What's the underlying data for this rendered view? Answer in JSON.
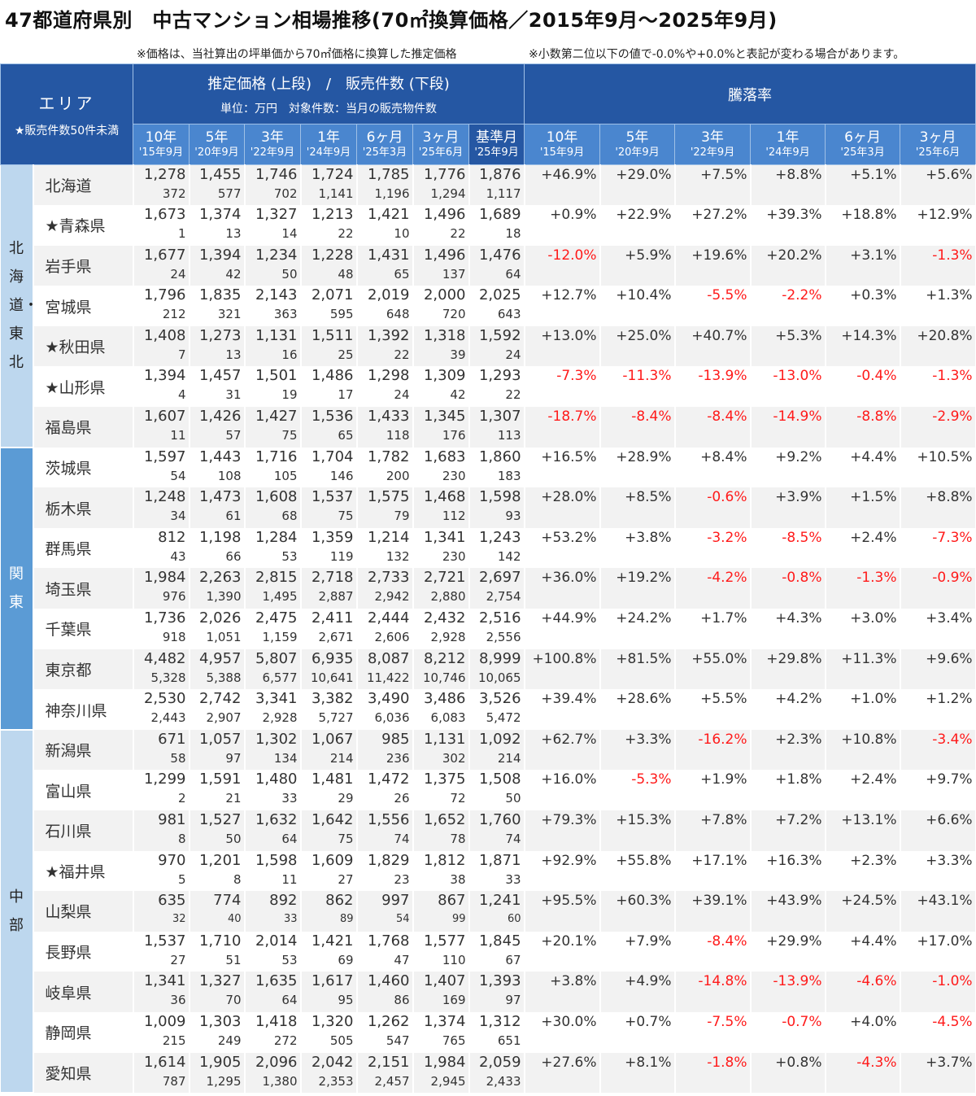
{
  "title": "47都道府県別　中古マンション相場推移(70㎡換算価格／2015年9月～2025年9月)",
  "notes": {
    "left": "※価格は、当社算出の坪単価から70㎡価格に換算した推定価格",
    "right": "※小数第二位以下の値で-0.0%や+0.0%と表記が変わる場合があります。"
  },
  "header": {
    "area": "エリア",
    "area_note": "★販売件数50件未満",
    "price_group": "推定価格 (上段)　/　販売件数 (下段)",
    "price_sub": "単位：万円　対象件数：当月の販売物件数",
    "rate_group": "騰落率",
    "price_cols": [
      {
        "label": "10年",
        "date": "'15年9月"
      },
      {
        "label": "5年",
        "date": "'20年9月"
      },
      {
        "label": "3年",
        "date": "'22年9月"
      },
      {
        "label": "1年",
        "date": "'24年9月"
      },
      {
        "label": "6ヶ月",
        "date": "'25年3月"
      },
      {
        "label": "3ヶ月",
        "date": "'25年6月"
      },
      {
        "label": "基準月",
        "date": "'25年9月"
      }
    ],
    "rate_cols": [
      {
        "label": "10年",
        "date": "'15年9月"
      },
      {
        "label": "5年",
        "date": "'20年9月"
      },
      {
        "label": "3年",
        "date": "'22年9月"
      },
      {
        "label": "1年",
        "date": "'24年9月"
      },
      {
        "label": "6ヶ月",
        "date": "'25年3月"
      },
      {
        "label": "3ヶ月",
        "date": "'25年6月"
      }
    ]
  },
  "colors": {
    "header_dark": "#2557a3",
    "header_light": "#4a86cf",
    "region_light": "#bdd7ee",
    "region_kanto": "#5b9bd5",
    "negative": "#ff1a1a",
    "row_alt": "#f2f2f2"
  },
  "regions": [
    {
      "name": "北海道・東北",
      "color": "#bdd7ee",
      "text_color": "#222",
      "prefs": [
        {
          "name": "北海道",
          "prices": [
            "1,278",
            "1,455",
            "1,746",
            "1,724",
            "1,785",
            "1,776",
            "1,876"
          ],
          "counts": [
            "372",
            "577",
            "702",
            "1,141",
            "1,196",
            "1,294",
            "1,117"
          ],
          "rates": [
            "+46.9%",
            "+29.0%",
            "+7.5%",
            "+8.8%",
            "+5.1%",
            "+5.6%"
          ]
        },
        {
          "name": "★青森県",
          "prices": [
            "1,673",
            "1,374",
            "1,327",
            "1,213",
            "1,421",
            "1,496",
            "1,689"
          ],
          "counts": [
            "1",
            "13",
            "14",
            "22",
            "10",
            "22",
            "18"
          ],
          "rates": [
            "+0.9%",
            "+22.9%",
            "+27.2%",
            "+39.3%",
            "+18.8%",
            "+12.9%"
          ]
        },
        {
          "name": "岩手県",
          "prices": [
            "1,677",
            "1,394",
            "1,234",
            "1,228",
            "1,431",
            "1,496",
            "1,476"
          ],
          "counts": [
            "24",
            "42",
            "50",
            "48",
            "65",
            "137",
            "64"
          ],
          "rates": [
            "-12.0%",
            "+5.9%",
            "+19.6%",
            "+20.2%",
            "+3.1%",
            "-1.3%"
          ]
        },
        {
          "name": "宮城県",
          "prices": [
            "1,796",
            "1,835",
            "2,143",
            "2,071",
            "2,019",
            "2,000",
            "2,025"
          ],
          "counts": [
            "212",
            "321",
            "363",
            "595",
            "648",
            "720",
            "643"
          ],
          "rates": [
            "+12.7%",
            "+10.4%",
            "-5.5%",
            "-2.2%",
            "+0.3%",
            "+1.3%"
          ]
        },
        {
          "name": "★秋田県",
          "prices": [
            "1,408",
            "1,273",
            "1,131",
            "1,511",
            "1,392",
            "1,318",
            "1,592"
          ],
          "counts": [
            "7",
            "13",
            "16",
            "25",
            "22",
            "39",
            "24"
          ],
          "rates": [
            "+13.0%",
            "+25.0%",
            "+40.7%",
            "+5.3%",
            "+14.3%",
            "+20.8%"
          ]
        },
        {
          "name": "★山形県",
          "prices": [
            "1,394",
            "1,457",
            "1,501",
            "1,486",
            "1,298",
            "1,309",
            "1,293"
          ],
          "counts": [
            "4",
            "31",
            "19",
            "17",
            "24",
            "42",
            "22"
          ],
          "rates": [
            "-7.3%",
            "-11.3%",
            "-13.9%",
            "-13.0%",
            "-0.4%",
            "-1.3%"
          ]
        },
        {
          "name": "福島県",
          "prices": [
            "1,607",
            "1,426",
            "1,427",
            "1,536",
            "1,433",
            "1,345",
            "1,307"
          ],
          "counts": [
            "11",
            "57",
            "75",
            "65",
            "118",
            "176",
            "113"
          ],
          "rates": [
            "-18.7%",
            "-8.4%",
            "-8.4%",
            "-14.9%",
            "-8.8%",
            "-2.9%"
          ]
        }
      ]
    },
    {
      "name": "関東",
      "color": "#5b9bd5",
      "text_color": "#ffffff",
      "prefs": [
        {
          "name": "茨城県",
          "prices": [
            "1,597",
            "1,443",
            "1,716",
            "1,704",
            "1,782",
            "1,683",
            "1,860"
          ],
          "counts": [
            "54",
            "108",
            "105",
            "146",
            "200",
            "230",
            "183"
          ],
          "rates": [
            "+16.5%",
            "+28.9%",
            "+8.4%",
            "+9.2%",
            "+4.4%",
            "+10.5%"
          ]
        },
        {
          "name": "栃木県",
          "prices": [
            "1,248",
            "1,473",
            "1,608",
            "1,537",
            "1,575",
            "1,468",
            "1,598"
          ],
          "counts": [
            "34",
            "61",
            "68",
            "75",
            "79",
            "112",
            "93"
          ],
          "rates": [
            "+28.0%",
            "+8.5%",
            "-0.6%",
            "+3.9%",
            "+1.5%",
            "+8.8%"
          ]
        },
        {
          "name": "群馬県",
          "prices": [
            "812",
            "1,198",
            "1,284",
            "1,359",
            "1,214",
            "1,341",
            "1,243"
          ],
          "counts": [
            "43",
            "66",
            "53",
            "119",
            "132",
            "230",
            "142"
          ],
          "rates": [
            "+53.2%",
            "+3.8%",
            "-3.2%",
            "-8.5%",
            "+2.4%",
            "-7.3%"
          ]
        },
        {
          "name": "埼玉県",
          "prices": [
            "1,984",
            "2,263",
            "2,815",
            "2,718",
            "2,733",
            "2,721",
            "2,697"
          ],
          "counts": [
            "976",
            "1,390",
            "1,495",
            "2,887",
            "2,942",
            "2,880",
            "2,754"
          ],
          "rates": [
            "+36.0%",
            "+19.2%",
            "-4.2%",
            "-0.8%",
            "-1.3%",
            "-0.9%"
          ]
        },
        {
          "name": "千葉県",
          "prices": [
            "1,736",
            "2,026",
            "2,475",
            "2,411",
            "2,444",
            "2,432",
            "2,516"
          ],
          "counts": [
            "918",
            "1,051",
            "1,159",
            "2,671",
            "2,606",
            "2,928",
            "2,556"
          ],
          "rates": [
            "+44.9%",
            "+24.2%",
            "+1.7%",
            "+4.3%",
            "+3.0%",
            "+3.4%"
          ]
        },
        {
          "name": "東京都",
          "prices": [
            "4,482",
            "4,957",
            "5,807",
            "6,935",
            "8,087",
            "8,212",
            "8,999"
          ],
          "counts": [
            "5,328",
            "5,388",
            "6,577",
            "10,641",
            "11,422",
            "10,746",
            "10,065"
          ],
          "rates": [
            "+100.8%",
            "+81.5%",
            "+55.0%",
            "+29.8%",
            "+11.3%",
            "+9.6%"
          ]
        },
        {
          "name": "神奈川県",
          "prices": [
            "2,530",
            "2,742",
            "3,341",
            "3,382",
            "3,490",
            "3,486",
            "3,526"
          ],
          "counts": [
            "2,443",
            "2,907",
            "2,928",
            "5,727",
            "6,036",
            "6,083",
            "5,472"
          ],
          "rates": [
            "+39.4%",
            "+28.6%",
            "+5.5%",
            "+4.2%",
            "+1.0%",
            "+1.2%"
          ]
        }
      ]
    },
    {
      "name": "中部",
      "color": "#bdd7ee",
      "text_color": "#222",
      "prefs": [
        {
          "name": "新潟県",
          "prices": [
            "671",
            "1,057",
            "1,302",
            "1,067",
            "985",
            "1,131",
            "1,092"
          ],
          "counts": [
            "58",
            "97",
            "134",
            "214",
            "236",
            "302",
            "214"
          ],
          "rates": [
            "+62.7%",
            "+3.3%",
            "-16.2%",
            "+2.3%",
            "+10.8%",
            "-3.4%"
          ]
        },
        {
          "name": "富山県",
          "prices": [
            "1,299",
            "1,591",
            "1,480",
            "1,481",
            "1,472",
            "1,375",
            "1,508"
          ],
          "counts": [
            "2",
            "21",
            "33",
            "29",
            "26",
            "72",
            "50"
          ],
          "rates": [
            "+16.0%",
            "-5.3%",
            "+1.9%",
            "+1.8%",
            "+2.4%",
            "+9.7%"
          ]
        },
        {
          "name": "石川県",
          "prices": [
            "981",
            "1,527",
            "1,632",
            "1,642",
            "1,556",
            "1,652",
            "1,760"
          ],
          "counts": [
            "8",
            "50",
            "64",
            "75",
            "74",
            "78",
            "74"
          ],
          "rates": [
            "+79.3%",
            "+15.3%",
            "+7.8%",
            "+7.2%",
            "+13.1%",
            "+6.6%"
          ]
        },
        {
          "name": "★福井県",
          "prices": [
            "970",
            "1,201",
            "1,598",
            "1,609",
            "1,829",
            "1,812",
            "1,871"
          ],
          "counts": [
            "5",
            "8",
            "11",
            "27",
            "23",
            "38",
            "33"
          ],
          "rates": [
            "+92.9%",
            "+55.8%",
            "+17.1%",
            "+16.3%",
            "+2.3%",
            "+3.3%"
          ]
        },
        {
          "name": "山梨県",
          "prices": [
            "635",
            "774",
            "892",
            "862",
            "997",
            "867",
            "1,241"
          ],
          "counts": [
            "32",
            "40",
            "33",
            "89",
            "54",
            "99",
            "60"
          ],
          "rates": [
            "+95.5%",
            "+60.3%",
            "+39.1%",
            "+43.9%",
            "+24.5%",
            "+43.1%"
          ],
          "small_counts": true
        },
        {
          "name": "長野県",
          "prices": [
            "1,537",
            "1,710",
            "2,014",
            "1,421",
            "1,768",
            "1,577",
            "1,845"
          ],
          "counts": [
            "27",
            "51",
            "53",
            "69",
            "47",
            "110",
            "67"
          ],
          "rates": [
            "+20.1%",
            "+7.9%",
            "-8.4%",
            "+29.9%",
            "+4.4%",
            "+17.0%"
          ]
        },
        {
          "name": "岐阜県",
          "prices": [
            "1,341",
            "1,327",
            "1,635",
            "1,617",
            "1,460",
            "1,407",
            "1,393"
          ],
          "counts": [
            "36",
            "70",
            "64",
            "95",
            "86",
            "169",
            "97"
          ],
          "rates": [
            "+3.8%",
            "+4.9%",
            "-14.8%",
            "-13.9%",
            "-4.6%",
            "-1.0%"
          ]
        },
        {
          "name": "静岡県",
          "prices": [
            "1,009",
            "1,303",
            "1,418",
            "1,320",
            "1,262",
            "1,374",
            "1,312"
          ],
          "counts": [
            "215",
            "249",
            "272",
            "505",
            "547",
            "765",
            "651"
          ],
          "rates": [
            "+30.0%",
            "+0.7%",
            "-7.5%",
            "-0.7%",
            "+4.0%",
            "-4.5%"
          ]
        },
        {
          "name": "愛知県",
          "prices": [
            "1,614",
            "1,905",
            "2,096",
            "2,042",
            "2,151",
            "1,984",
            "2,059"
          ],
          "counts": [
            "787",
            "1,295",
            "1,380",
            "2,353",
            "2,457",
            "2,945",
            "2,433"
          ],
          "rates": [
            "+27.6%",
            "+8.1%",
            "-1.8%",
            "+0.8%",
            "-4.3%",
            "+3.7%"
          ]
        }
      ]
    }
  ]
}
